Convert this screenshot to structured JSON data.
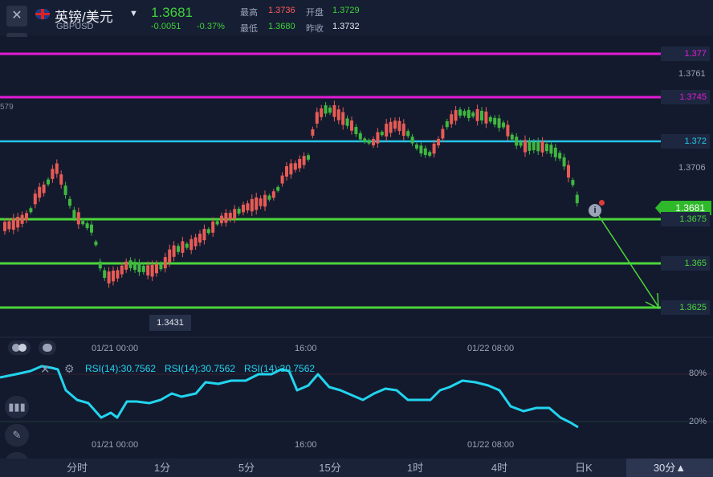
{
  "header": {
    "symbol_name": "英镑/美元",
    "symbol_code": "GBPUSD",
    "price": "1.3681",
    "change_abs": "-0.0051",
    "change_pct": "-0.37%",
    "high_label": "最高",
    "high_value": "1.3736",
    "open_label": "开盘",
    "open_value": "1.3729",
    "low_label": "最低",
    "low_value": "1.3680",
    "prev_label": "昨收",
    "prev_value": "1.3732"
  },
  "chart": {
    "left_edge_label": "579",
    "price_boxes": {
      "l1": "1.377",
      "l2": "1.3745",
      "l3": "1.372",
      "current": "1.3681",
      "l4": "1.3675",
      "l5": "1.365",
      "l6": "1.3625"
    },
    "axis_labels": {
      "a1": "1.3761",
      "a2": "1.3706"
    },
    "low_marker": "1.3431",
    "time_labels": [
      "01/21 00:00",
      "16:00",
      "01/22 08:00"
    ]
  },
  "indicator": {
    "rsi_labels": [
      "RSI(14):30.7562",
      "RSI(14):30.7562",
      "RSI(14):30.7562"
    ],
    "level_80": "80%",
    "level_20": "20%",
    "time_labels": [
      "01/21 00:00",
      "16:00",
      "01/22 08:00"
    ]
  },
  "timeframes": [
    "分时",
    "1分",
    "5分",
    "15分",
    "1时",
    "4时",
    "日K",
    "30分▲"
  ],
  "colors": {
    "up": "#e85b55",
    "down": "#3fb83f",
    "magenta": "#e21bd4",
    "cyan": "#26c6e6",
    "green_line": "#4cd63a",
    "rsi": "#22d4ee"
  },
  "icons": [
    "close-icon",
    "uk-flag-icon",
    "dropdown-icon",
    "collapse-icon",
    "info-icon",
    "settings-icon",
    "candlestick-icon",
    "pen-icon",
    "indicator-icon"
  ]
}
